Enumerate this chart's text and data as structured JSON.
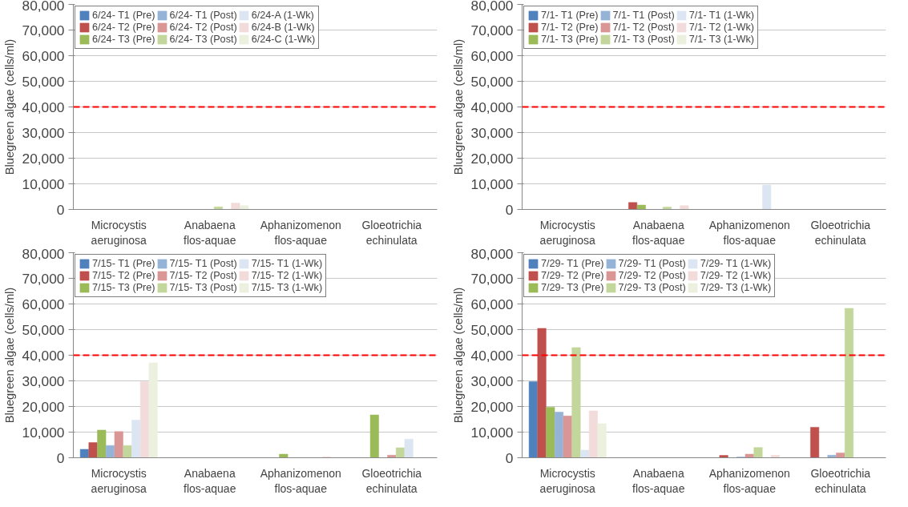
{
  "chart_data": [
    {
      "type": "bar",
      "ylabel": "Bluegreen algae (cells/ml)",
      "categories": [
        "Microcystis aeruginosa",
        "Anabaena flos-aquae",
        "Aphanizomenon flos-aquae",
        "Gloeotrichia echinulata"
      ],
      "ylim": [
        0,
        80000
      ],
      "yticks": [
        {
          "value": 0,
          "label": "0"
        },
        {
          "value": 10000,
          "label": "10,000"
        },
        {
          "value": 20000,
          "label": "20,000"
        },
        {
          "value": 30000,
          "label": "30,000"
        },
        {
          "value": 40000,
          "label": "40,000"
        },
        {
          "value": 50000,
          "label": "50,000"
        },
        {
          "value": 60000,
          "label": "60,000"
        },
        {
          "value": 70000,
          "label": "70,000"
        },
        {
          "value": 80000,
          "label": "80,000"
        }
      ],
      "grid": "y",
      "legend": "top left",
      "ref_lines": [
        {
          "axis": "y",
          "value": 40000,
          "color": "#ff0000",
          "line_style": "dashed"
        }
      ],
      "series": [
        {
          "name": "6/24- T1 (Pre)",
          "color": "#4f81bd",
          "values": [
            0,
            0,
            0,
            0
          ]
        },
        {
          "name": "6/24- T2 (Pre)",
          "color": "#c0504d",
          "values": [
            0,
            0,
            0,
            0
          ]
        },
        {
          "name": "6/24- T3 (Pre)",
          "color": "#9bbb59",
          "values": [
            0,
            0,
            0,
            0
          ]
        },
        {
          "name": "6/24- T1 (Post)",
          "color": "#95b3d7",
          "values": [
            0,
            0,
            0,
            0
          ]
        },
        {
          "name": "6/24- T2 (Post)",
          "color": "#d99694",
          "values": [
            0,
            0,
            0,
            0
          ]
        },
        {
          "name": "6/24- T3 (Post)",
          "color": "#c3d69b",
          "values": [
            0,
            1000,
            0,
            0
          ]
        },
        {
          "name": "6/24-A (1-Wk)",
          "color": "#dce6f2",
          "values": [
            0,
            0,
            0,
            0
          ]
        },
        {
          "name": "6/24-B (1-Wk)",
          "color": "#f2dcdb",
          "values": [
            0,
            2500,
            0,
            0
          ]
        },
        {
          "name": "6/24-C (1-Wk)",
          "color": "#ebf1de",
          "values": [
            0,
            1500,
            0,
            0
          ]
        }
      ]
    },
    {
      "type": "bar",
      "ylabel": "Bluegreen algae (cells/ml)",
      "categories": [
        "Microcystis aeruginosa",
        "Anabaena flos-aquae",
        "Aphanizomenon flos-aquae",
        "Gloeotrichia echinulata"
      ],
      "ylim": [
        0,
        80000
      ],
      "yticks": [
        {
          "value": 0,
          "label": "0"
        },
        {
          "value": 10000,
          "label": "10,000"
        },
        {
          "value": 20000,
          "label": "20,000"
        },
        {
          "value": 30000,
          "label": "30,000"
        },
        {
          "value": 40000,
          "label": "40,000"
        },
        {
          "value": 50000,
          "label": "50,000"
        },
        {
          "value": 60000,
          "label": "60,000"
        },
        {
          "value": 70000,
          "label": "70,000"
        },
        {
          "value": 80000,
          "label": "80,000"
        }
      ],
      "grid": "y",
      "legend": "top left",
      "ref_lines": [
        {
          "axis": "y",
          "value": 40000,
          "color": "#ff0000",
          "line_style": "dashed"
        }
      ],
      "series": [
        {
          "name": "7/1- T1 (Pre)",
          "color": "#4f81bd",
          "values": [
            0,
            0,
            0,
            0
          ]
        },
        {
          "name": "7/1- T2 (Pre)",
          "color": "#c0504d",
          "values": [
            0,
            2700,
            0,
            0
          ]
        },
        {
          "name": "7/1- T3 (Pre)",
          "color": "#9bbb59",
          "values": [
            0,
            1700,
            0,
            0
          ]
        },
        {
          "name": "7/1- T1 (Post)",
          "color": "#95b3d7",
          "values": [
            0,
            0,
            0,
            0
          ]
        },
        {
          "name": "7/1- T2 (Post)",
          "color": "#d99694",
          "values": [
            0,
            0,
            0,
            0
          ]
        },
        {
          "name": "7/1- T3 (Post)",
          "color": "#c3d69b",
          "values": [
            0,
            900,
            0,
            0
          ]
        },
        {
          "name": "7/1- T1 (1-Wk)",
          "color": "#dce6f2",
          "values": [
            0,
            0,
            9500,
            0
          ]
        },
        {
          "name": "7/1- T2 (1-Wk)",
          "color": "#f2dcdb",
          "values": [
            0,
            1500,
            0,
            0
          ]
        },
        {
          "name": "7/1- T3 (1-Wk)",
          "color": "#ebf1de",
          "values": [
            0,
            0,
            0,
            0
          ]
        }
      ]
    },
    {
      "type": "bar",
      "ylabel": "Bluegreen algae (cells/ml)",
      "categories": [
        "Microcystis aeruginosa",
        "Anabaena flos-aquae",
        "Aphanizomenon flos-aquae",
        "Gloeotrichia echinulata"
      ],
      "ylim": [
        0,
        80000
      ],
      "yticks": [
        {
          "value": 0,
          "label": "0"
        },
        {
          "value": 10000,
          "label": "10,000"
        },
        {
          "value": 20000,
          "label": "20,000"
        },
        {
          "value": 30000,
          "label": "30,000"
        },
        {
          "value": 40000,
          "label": "40,000"
        },
        {
          "value": 50000,
          "label": "50,000"
        },
        {
          "value": 60000,
          "label": "60,000"
        },
        {
          "value": 70000,
          "label": "70,000"
        },
        {
          "value": 80000,
          "label": "80,000"
        }
      ],
      "grid": "y",
      "legend": "top left",
      "ref_lines": [
        {
          "axis": "y",
          "value": 40000,
          "color": "#ff0000",
          "line_style": "dashed"
        }
      ],
      "series": [
        {
          "name": "7/15- T1 (Pre)",
          "color": "#4f81bd",
          "values": [
            3300,
            0,
            0,
            0
          ]
        },
        {
          "name": "7/15- T2 (Pre)",
          "color": "#c0504d",
          "values": [
            5900,
            0,
            0,
            0
          ]
        },
        {
          "name": "7/15- T3 (Pre)",
          "color": "#9bbb59",
          "values": [
            10800,
            0,
            1400,
            16700
          ]
        },
        {
          "name": "7/15- T1 (Post)",
          "color": "#95b3d7",
          "values": [
            4800,
            0,
            0,
            0
          ]
        },
        {
          "name": "7/15- T2 (Post)",
          "color": "#d99694",
          "values": [
            10200,
            0,
            0,
            1000
          ]
        },
        {
          "name": "7/15- T3 (Post)",
          "color": "#c3d69b",
          "values": [
            4800,
            0,
            0,
            3900
          ]
        },
        {
          "name": "7/15- T1 (1-Wk)",
          "color": "#dce6f2",
          "values": [
            14700,
            0,
            0,
            7300
          ]
        },
        {
          "name": "7/15- T2 (1-Wk)",
          "color": "#f2dcdb",
          "values": [
            29700,
            0,
            400,
            0
          ]
        },
        {
          "name": "7/15- T3 (1-Wk)",
          "color": "#ebf1de",
          "values": [
            37000,
            0,
            0,
            0
          ]
        }
      ]
    },
    {
      "type": "bar",
      "ylabel": "Bluegreen algae (cells/ml)",
      "categories": [
        "Microcystis aeruginosa",
        "Anabaena flos-aquae",
        "Aphanizomenon flos-aquae",
        "Gloeotrichia echinulata"
      ],
      "ylim": [
        0,
        80000
      ],
      "yticks": [
        {
          "value": 0,
          "label": "0"
        },
        {
          "value": 10000,
          "label": "10,000"
        },
        {
          "value": 20000,
          "label": "20,000"
        },
        {
          "value": 30000,
          "label": "30,000"
        },
        {
          "value": 40000,
          "label": "40,000"
        },
        {
          "value": 50000,
          "label": "50,000"
        },
        {
          "value": 60000,
          "label": "60,000"
        },
        {
          "value": 70000,
          "label": "70,000"
        },
        {
          "value": 80000,
          "label": "80,000"
        }
      ],
      "grid": "y",
      "legend": "top left",
      "ref_lines": [
        {
          "axis": "y",
          "value": 40000,
          "color": "#ff0000",
          "line_style": "dashed"
        }
      ],
      "series": [
        {
          "name": "7/29- T1 (Pre)",
          "color": "#4f81bd",
          "values": [
            29700,
            0,
            0,
            0
          ]
        },
        {
          "name": "7/29- T2 (Pre)",
          "color": "#c0504d",
          "values": [
            50500,
            0,
            900,
            11900
          ]
        },
        {
          "name": "7/29- T3 (Pre)",
          "color": "#9bbb59",
          "values": [
            19700,
            0,
            0,
            0
          ]
        },
        {
          "name": "7/29- T1 (Post)",
          "color": "#95b3d7",
          "values": [
            17800,
            0,
            300,
            1000
          ]
        },
        {
          "name": "7/29- T2 (Post)",
          "color": "#d99694",
          "values": [
            16300,
            0,
            1400,
            1900
          ]
        },
        {
          "name": "7/29- T3 (Post)",
          "color": "#c3d69b",
          "values": [
            43000,
            0,
            4000,
            58300
          ]
        },
        {
          "name": "7/29- T1 (1-Wk)",
          "color": "#dce6f2",
          "values": [
            3000,
            0,
            0,
            0
          ]
        },
        {
          "name": "7/29- T2 (1-Wk)",
          "color": "#f2dcdb",
          "values": [
            18300,
            0,
            1000,
            0
          ]
        },
        {
          "name": "7/29- T3 (1-Wk)",
          "color": "#ebf1de",
          "values": [
            13300,
            0,
            0,
            0
          ]
        }
      ]
    }
  ]
}
